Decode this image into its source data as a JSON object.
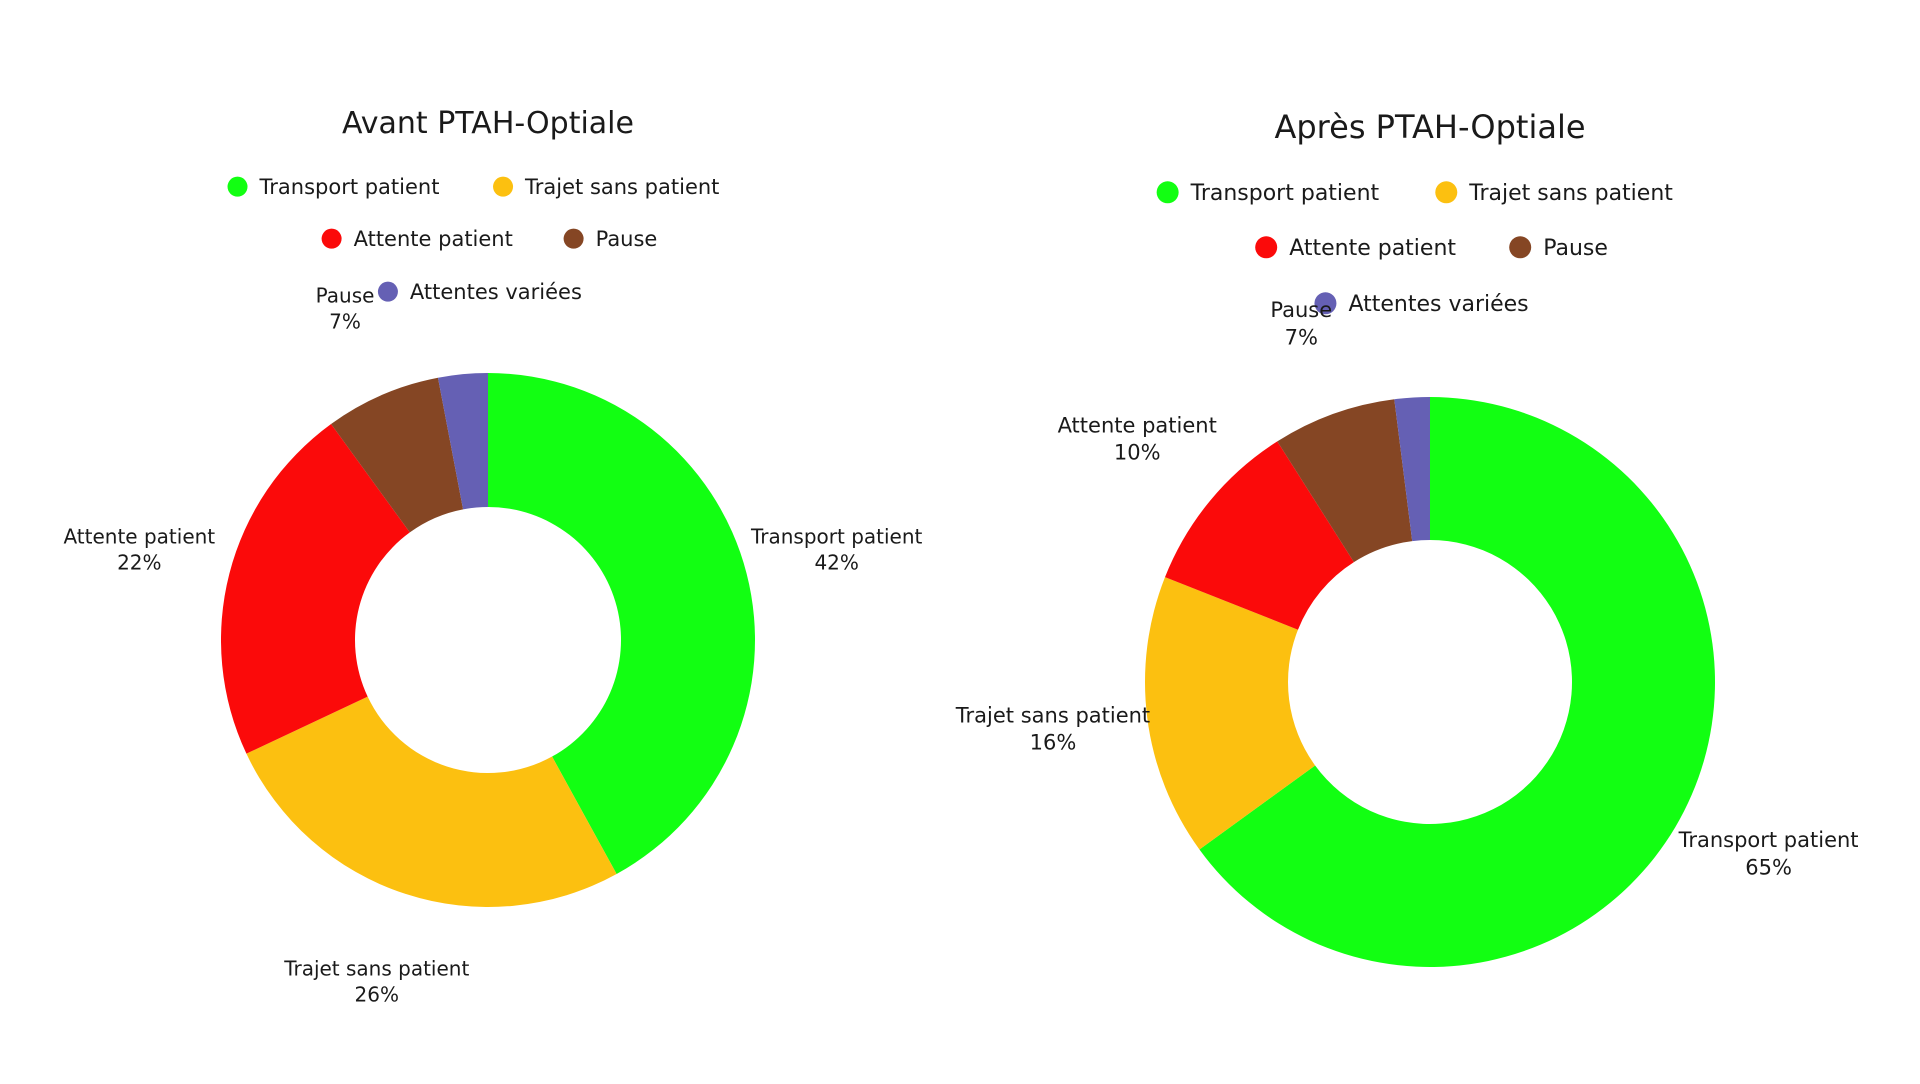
{
  "chart_data": [
    {
      "type": "donut",
      "title": "Avant PTAH-Optiale",
      "legend_rows": [
        [
          "Transport patient",
          "Trajet sans patient"
        ],
        [
          "Attente patient",
          "Pause"
        ],
        [
          "Attentes variées"
        ]
      ],
      "slices": [
        {
          "label": "Transport patient",
          "value": 42,
          "color": "#12ff12",
          "display": "42%"
        },
        {
          "label": "Trajet sans patient",
          "value": 26,
          "color": "#fcc010",
          "display": "26%"
        },
        {
          "label": "Attente patient",
          "value": 22,
          "color": "#fb0a0a",
          "display": "22%"
        },
        {
          "label": "Pause",
          "value": 7,
          "color": "#854624",
          "display": "7%"
        },
        {
          "label": "Attentes variées",
          "value": 3,
          "color": "#6560b4",
          "display": ""
        }
      ],
      "start_angle_deg": 0,
      "direction": "clockwise",
      "legend_position": "top"
    },
    {
      "type": "donut",
      "title": "Après PTAH-Optiale",
      "legend_rows": [
        [
          "Transport patient",
          "Trajet sans patient"
        ],
        [
          "Attente patient",
          "Pause"
        ],
        [
          "Attentes variées"
        ]
      ],
      "slices": [
        {
          "label": "Transport patient",
          "value": 65,
          "color": "#12ff12",
          "display": "65%"
        },
        {
          "label": "Trajet sans patient",
          "value": 16,
          "color": "#fcc010",
          "display": "16%"
        },
        {
          "label": "Attente patient",
          "value": 10,
          "color": "#fb0a0a",
          "display": "10%"
        },
        {
          "label": "Pause",
          "value": 7,
          "color": "#854624",
          "display": "7%"
        },
        {
          "label": "Attentes variées",
          "value": 2,
          "color": "#6560b4",
          "display": ""
        }
      ],
      "start_angle_deg": 0,
      "direction": "clockwise",
      "legend_position": "top"
    }
  ]
}
